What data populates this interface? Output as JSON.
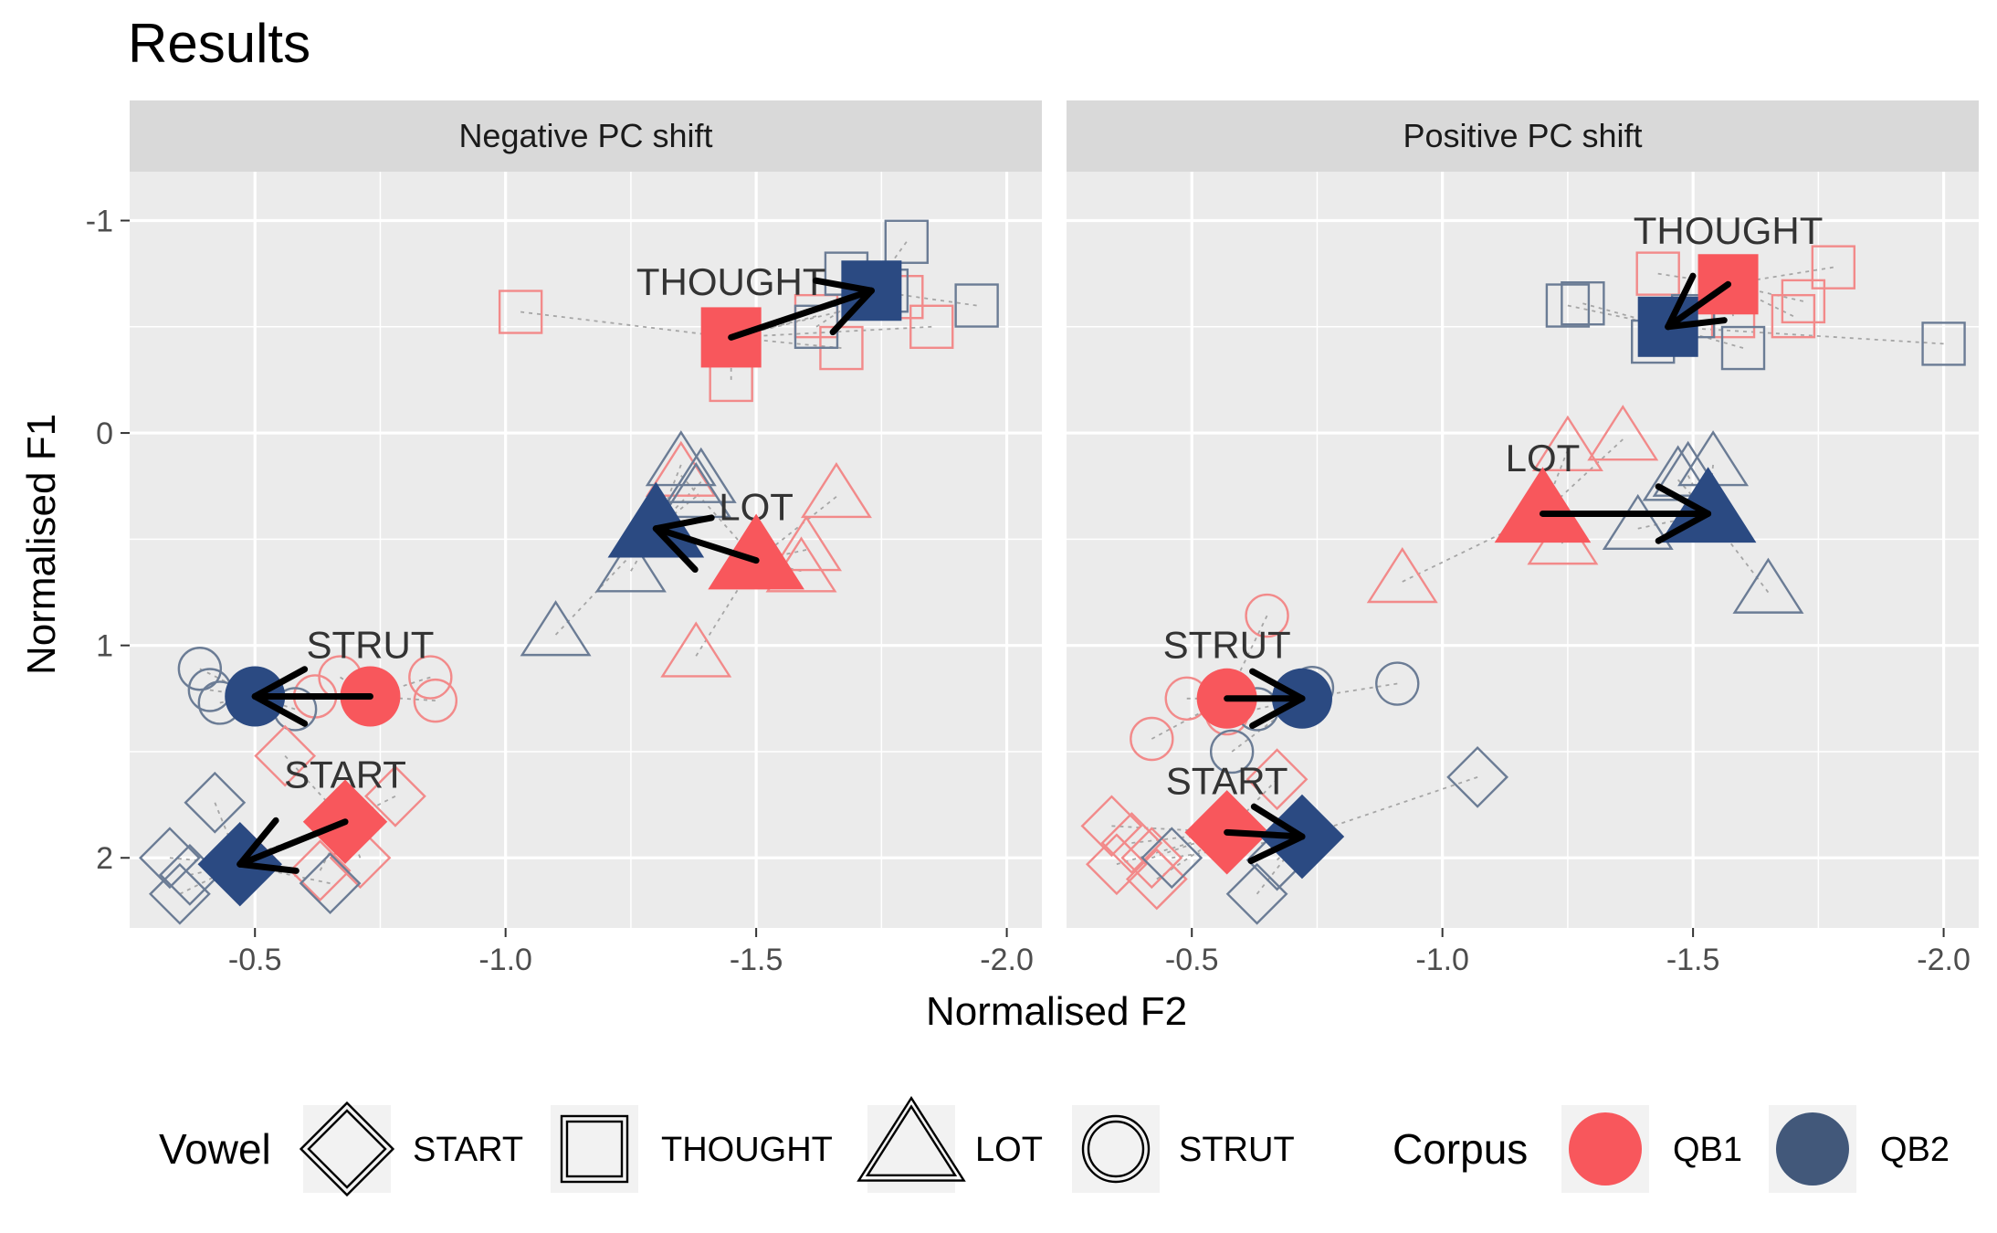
{
  "colors": {
    "QB1": "#F8575C",
    "QB2": "#2B4A82",
    "QB1_hollow": "#F28A8A",
    "QB2_hollow": "#6B7C95",
    "QB2_legend": "#42587A",
    "panel_bg": "#EBEBEB",
    "strip_bg": "#D9D9D9",
    "grid": "#FFFFFF",
    "trail": "#A6A6A6",
    "arrow": "#000000"
  },
  "chart_data": {
    "type": "scatter",
    "title": "Results",
    "xlabel": "Normalised F2",
    "ylabel": "Normalised F1",
    "x_reversed": true,
    "y_reversed": true,
    "xlim": [
      -0.25,
      -2.07
    ],
    "ylim": [
      -1.23,
      2.33
    ],
    "x_ticks": [
      -0.5,
      -1.0,
      -1.5,
      -2.0
    ],
    "x_tick_labels": [
      "-0.5",
      "-1.0",
      "-1.5",
      "-2.0"
    ],
    "y_ticks": [
      -1,
      0,
      1,
      2
    ],
    "y_tick_labels": [
      "-1",
      "0",
      "1",
      "2"
    ],
    "legend": {
      "position": "bottom",
      "vowel_title": "Vowel",
      "vowel_items": [
        {
          "shape": "diamond",
          "label": "START"
        },
        {
          "shape": "square",
          "label": "THOUGHT"
        },
        {
          "shape": "triangle",
          "label": "LOT"
        },
        {
          "shape": "circle",
          "label": "STRUT"
        }
      ],
      "corpus_title": "Corpus",
      "corpus_items": [
        {
          "label": "QB1",
          "color": "#F8575C"
        },
        {
          "label": "QB2",
          "color": "#42587A"
        }
      ]
    },
    "panels": [
      {
        "name": "Negative PC shift",
        "means": [
          {
            "vowel": "THOUGHT",
            "qb1": [
              -1.45,
              -0.45
            ],
            "qb2": [
              -1.73,
              -0.67
            ],
            "label_pos": [
              -1.45,
              -0.71
            ]
          },
          {
            "vowel": "LOT",
            "qb1": [
              -1.5,
              0.6
            ],
            "qb2": [
              -1.3,
              0.45
            ],
            "label_pos": [
              -1.5,
              0.35
            ]
          },
          {
            "vowel": "STRUT",
            "qb1": [
              -0.73,
              1.24
            ],
            "qb2": [
              -0.5,
              1.24
            ],
            "label_pos": [
              -0.73,
              1.0
            ]
          },
          {
            "vowel": "START",
            "qb1": [
              -0.68,
              1.83
            ],
            "qb2": [
              -0.47,
              2.03
            ],
            "label_pos": [
              -0.68,
              1.61
            ]
          }
        ],
        "speakers": [
          {
            "vowel": "THOUGHT",
            "corpus": "QB1",
            "x": -1.03,
            "y": -0.57
          },
          {
            "vowel": "THOUGHT",
            "corpus": "QB1",
            "x": -1.45,
            "y": -0.25
          },
          {
            "vowel": "THOUGHT",
            "corpus": "QB1",
            "x": -1.62,
            "y": -0.55
          },
          {
            "vowel": "THOUGHT",
            "corpus": "QB1",
            "x": -1.67,
            "y": -0.4
          },
          {
            "vowel": "THOUGHT",
            "corpus": "QB1",
            "x": -1.85,
            "y": -0.5
          },
          {
            "vowel": "THOUGHT",
            "corpus": "QB1",
            "x": -1.79,
            "y": -0.64
          },
          {
            "vowel": "THOUGHT",
            "corpus": "QB2",
            "x": -1.8,
            "y": -0.9
          },
          {
            "vowel": "THOUGHT",
            "corpus": "QB2",
            "x": -1.76,
            "y": -0.67
          },
          {
            "vowel": "THOUGHT",
            "corpus": "QB2",
            "x": -1.62,
            "y": -0.5
          },
          {
            "vowel": "THOUGHT",
            "corpus": "QB2",
            "x": -1.94,
            "y": -0.6
          },
          {
            "vowel": "THOUGHT",
            "corpus": "QB2",
            "x": -1.68,
            "y": -0.75
          },
          {
            "vowel": "LOT",
            "corpus": "QB1",
            "x": -1.35,
            "y": 0.2
          },
          {
            "vowel": "LOT",
            "corpus": "QB1",
            "x": -1.66,
            "y": 0.3
          },
          {
            "vowel": "LOT",
            "corpus": "QB1",
            "x": -1.6,
            "y": 0.55
          },
          {
            "vowel": "LOT",
            "corpus": "QB1",
            "x": -1.59,
            "y": 0.65
          },
          {
            "vowel": "LOT",
            "corpus": "QB1",
            "x": -1.38,
            "y": 1.05
          },
          {
            "vowel": "LOT",
            "corpus": "QB2",
            "x": -1.35,
            "y": 0.15
          },
          {
            "vowel": "LOT",
            "corpus": "QB2",
            "x": -1.39,
            "y": 0.23
          },
          {
            "vowel": "LOT",
            "corpus": "QB2",
            "x": -1.38,
            "y": 0.3
          },
          {
            "vowel": "LOT",
            "corpus": "QB2",
            "x": -1.25,
            "y": 0.65
          },
          {
            "vowel": "LOT",
            "corpus": "QB2",
            "x": -1.1,
            "y": 0.95
          },
          {
            "vowel": "STRUT",
            "corpus": "QB1",
            "x": -0.62,
            "y": 1.24
          },
          {
            "vowel": "STRUT",
            "corpus": "QB1",
            "x": -0.67,
            "y": 1.15
          },
          {
            "vowel": "STRUT",
            "corpus": "QB1",
            "x": -0.85,
            "y": 1.15
          },
          {
            "vowel": "STRUT",
            "corpus": "QB1",
            "x": -0.86,
            "y": 1.26
          },
          {
            "vowel": "STRUT",
            "corpus": "QB2",
            "x": -0.39,
            "y": 1.11
          },
          {
            "vowel": "STRUT",
            "corpus": "QB2",
            "x": -0.41,
            "y": 1.21
          },
          {
            "vowel": "STRUT",
            "corpus": "QB2",
            "x": -0.43,
            "y": 1.27
          },
          {
            "vowel": "STRUT",
            "corpus": "QB2",
            "x": -0.58,
            "y": 1.3
          },
          {
            "vowel": "START",
            "corpus": "QB1",
            "x": -0.56,
            "y": 1.52
          },
          {
            "vowel": "START",
            "corpus": "QB1",
            "x": -0.78,
            "y": 1.71
          },
          {
            "vowel": "START",
            "corpus": "QB1",
            "x": -0.71,
            "y": 2.0
          },
          {
            "vowel": "START",
            "corpus": "QB1",
            "x": -0.48,
            "y": 2.0
          },
          {
            "vowel": "START",
            "corpus": "QB1",
            "x": -0.63,
            "y": 2.06
          },
          {
            "vowel": "START",
            "corpus": "QB2",
            "x": -0.42,
            "y": 1.74
          },
          {
            "vowel": "START",
            "corpus": "QB2",
            "x": -0.33,
            "y": 2.0
          },
          {
            "vowel": "START",
            "corpus": "QB2",
            "x": -0.35,
            "y": 2.17
          },
          {
            "vowel": "START",
            "corpus": "QB2",
            "x": -0.65,
            "y": 2.12
          },
          {
            "vowel": "START",
            "corpus": "QB2",
            "x": -0.37,
            "y": 2.08
          }
        ]
      },
      {
        "name": "Positive PC shift",
        "means": [
          {
            "vowel": "THOUGHT",
            "qb1": [
              -1.57,
              -0.7
            ],
            "qb2": [
              -1.45,
              -0.5
            ],
            "label_pos": [
              -1.57,
              -0.95
            ]
          },
          {
            "vowel": "LOT",
            "qb1": [
              -1.2,
              0.38
            ],
            "qb2": [
              -1.53,
              0.38
            ],
            "label_pos": [
              -1.2,
              0.12
            ]
          },
          {
            "vowel": "STRUT",
            "qb1": [
              -0.57,
              1.25
            ],
            "qb2": [
              -0.72,
              1.25
            ],
            "label_pos": [
              -0.57,
              1.0
            ]
          },
          {
            "vowel": "START",
            "qb1": [
              -0.57,
              1.88
            ],
            "qb2": [
              -0.72,
              1.9
            ],
            "label_pos": [
              -0.57,
              1.64
            ]
          }
        ],
        "speakers": [
          {
            "vowel": "THOUGHT",
            "corpus": "QB1",
            "x": -1.43,
            "y": -0.75
          },
          {
            "vowel": "THOUGHT",
            "corpus": "QB1",
            "x": -1.72,
            "y": -0.62
          },
          {
            "vowel": "THOUGHT",
            "corpus": "QB1",
            "x": -1.7,
            "y": -0.55
          },
          {
            "vowel": "THOUGHT",
            "corpus": "QB1",
            "x": -1.78,
            "y": -0.78
          },
          {
            "vowel": "THOUGHT",
            "corpus": "QB1",
            "x": -1.58,
            "y": -0.55
          },
          {
            "vowel": "THOUGHT",
            "corpus": "QB2",
            "x": -1.25,
            "y": -0.6
          },
          {
            "vowel": "THOUGHT",
            "corpus": "QB2",
            "x": -1.28,
            "y": -0.61
          },
          {
            "vowel": "THOUGHT",
            "corpus": "QB2",
            "x": -1.42,
            "y": -0.43
          },
          {
            "vowel": "THOUGHT",
            "corpus": "QB2",
            "x": -1.6,
            "y": -0.4
          },
          {
            "vowel": "THOUGHT",
            "corpus": "QB2",
            "x": -1.5,
            "y": -0.55
          },
          {
            "vowel": "THOUGHT",
            "corpus": "QB2",
            "x": -2.0,
            "y": -0.42
          },
          {
            "vowel": "LOT",
            "corpus": "QB1",
            "x": -1.25,
            "y": 0.08
          },
          {
            "vowel": "LOT",
            "corpus": "QB1",
            "x": -1.36,
            "y": 0.03
          },
          {
            "vowel": "LOT",
            "corpus": "QB1",
            "x": -1.24,
            "y": 0.52
          },
          {
            "vowel": "LOT",
            "corpus": "QB1",
            "x": -0.92,
            "y": 0.7
          },
          {
            "vowel": "LOT",
            "corpus": "QB2",
            "x": -1.47,
            "y": 0.22
          },
          {
            "vowel": "LOT",
            "corpus": "QB2",
            "x": -1.54,
            "y": 0.15
          },
          {
            "vowel": "LOT",
            "corpus": "QB2",
            "x": -1.49,
            "y": 0.2
          },
          {
            "vowel": "LOT",
            "corpus": "QB2",
            "x": -1.39,
            "y": 0.45
          },
          {
            "vowel": "LOT",
            "corpus": "QB2",
            "x": -1.65,
            "y": 0.75
          },
          {
            "vowel": "STRUT",
            "corpus": "QB1",
            "x": -0.65,
            "y": 0.86
          },
          {
            "vowel": "STRUT",
            "corpus": "QB1",
            "x": -0.49,
            "y": 1.25
          },
          {
            "vowel": "STRUT",
            "corpus": "QB1",
            "x": -0.57,
            "y": 1.32
          },
          {
            "vowel": "STRUT",
            "corpus": "QB1",
            "x": -0.42,
            "y": 1.44
          },
          {
            "vowel": "STRUT",
            "corpus": "QB2",
            "x": -0.74,
            "y": 1.2
          },
          {
            "vowel": "STRUT",
            "corpus": "QB2",
            "x": -0.63,
            "y": 1.3
          },
          {
            "vowel": "STRUT",
            "corpus": "QB2",
            "x": -0.58,
            "y": 1.5
          },
          {
            "vowel": "STRUT",
            "corpus": "QB2",
            "x": -0.91,
            "y": 1.18
          },
          {
            "vowel": "START",
            "corpus": "QB1",
            "x": -0.34,
            "y": 1.85
          },
          {
            "vowel": "START",
            "corpus": "QB1",
            "x": -0.38,
            "y": 1.93
          },
          {
            "vowel": "START",
            "corpus": "QB1",
            "x": -0.42,
            "y": 2.0
          },
          {
            "vowel": "START",
            "corpus": "QB1",
            "x": -0.35,
            "y": 2.03
          },
          {
            "vowel": "START",
            "corpus": "QB1",
            "x": -0.67,
            "y": 1.63
          },
          {
            "vowel": "START",
            "corpus": "QB1",
            "x": -0.43,
            "y": 2.1
          },
          {
            "vowel": "START",
            "corpus": "QB2",
            "x": -0.46,
            "y": 2.0
          },
          {
            "vowel": "START",
            "corpus": "QB2",
            "x": -0.63,
            "y": 2.17
          },
          {
            "vowel": "START",
            "corpus": "QB2",
            "x": -0.67,
            "y": 2.01
          },
          {
            "vowel": "START",
            "corpus": "QB2",
            "x": -1.07,
            "y": 1.62
          }
        ]
      }
    ]
  }
}
